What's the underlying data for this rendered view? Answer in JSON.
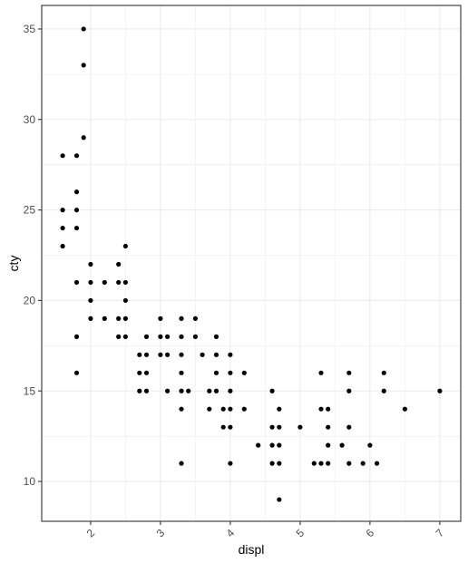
{
  "chart_data": {
    "type": "scatter",
    "title": "",
    "xlabel": "displ",
    "ylabel": "cty",
    "xlim": [
      1.3,
      7.3
    ],
    "ylim": [
      7.8,
      36.3
    ],
    "x_ticks": [
      2,
      3,
      4,
      5,
      6,
      7
    ],
    "x_tick_labels": [
      "2",
      "3",
      "4",
      "5",
      "6",
      "7"
    ],
    "y_ticks": [
      10,
      15,
      20,
      25,
      30,
      35
    ],
    "y_tick_labels": [
      "10",
      "15",
      "20",
      "25",
      "30",
      "35"
    ],
    "grid": true,
    "x_tick_label_rotation": "45 degrees",
    "point_color": "#000000",
    "background": "#ffffff",
    "grid_color": "#ebebeb",
    "border_color": "#333333",
    "points": [
      [
        1.6,
        28
      ],
      [
        1.6,
        25
      ],
      [
        1.6,
        24
      ],
      [
        1.6,
        23
      ],
      [
        1.8,
        28
      ],
      [
        1.8,
        26
      ],
      [
        1.8,
        25
      ],
      [
        1.8,
        24
      ],
      [
        1.8,
        21
      ],
      [
        1.8,
        18
      ],
      [
        1.8,
        16
      ],
      [
        1.9,
        35
      ],
      [
        1.9,
        33
      ],
      [
        1.9,
        29
      ],
      [
        2.0,
        22
      ],
      [
        2.0,
        21
      ],
      [
        2.0,
        20
      ],
      [
        2.0,
        19
      ],
      [
        2.2,
        21
      ],
      [
        2.2,
        19
      ],
      [
        2.4,
        22
      ],
      [
        2.4,
        21
      ],
      [
        2.4,
        19
      ],
      [
        2.4,
        18
      ],
      [
        2.5,
        23
      ],
      [
        2.5,
        21
      ],
      [
        2.5,
        20
      ],
      [
        2.5,
        19
      ],
      [
        2.5,
        18
      ],
      [
        2.7,
        17
      ],
      [
        2.7,
        16
      ],
      [
        2.7,
        15
      ],
      [
        2.8,
        18
      ],
      [
        2.8,
        17
      ],
      [
        2.8,
        16
      ],
      [
        2.8,
        15
      ],
      [
        3.0,
        19
      ],
      [
        3.0,
        18
      ],
      [
        3.0,
        17
      ],
      [
        3.1,
        18
      ],
      [
        3.1,
        17
      ],
      [
        3.1,
        15
      ],
      [
        3.3,
        19
      ],
      [
        3.3,
        18
      ],
      [
        3.3,
        17
      ],
      [
        3.3,
        16
      ],
      [
        3.3,
        15
      ],
      [
        3.3,
        14
      ],
      [
        3.3,
        11
      ],
      [
        3.4,
        15
      ],
      [
        3.5,
        19
      ],
      [
        3.5,
        18
      ],
      [
        3.6,
        17
      ],
      [
        3.7,
        15
      ],
      [
        3.7,
        14
      ],
      [
        3.8,
        18
      ],
      [
        3.8,
        17
      ],
      [
        3.8,
        16
      ],
      [
        3.8,
        15
      ],
      [
        3.9,
        14
      ],
      [
        3.9,
        13
      ],
      [
        4.0,
        17
      ],
      [
        4.0,
        16
      ],
      [
        4.0,
        15
      ],
      [
        4.0,
        14
      ],
      [
        4.0,
        13
      ],
      [
        4.0,
        11
      ],
      [
        4.2,
        16
      ],
      [
        4.2,
        14
      ],
      [
        4.4,
        12
      ],
      [
        4.6,
        15
      ],
      [
        4.6,
        13
      ],
      [
        4.6,
        12
      ],
      [
        4.6,
        11
      ],
      [
        4.7,
        14
      ],
      [
        4.7,
        13
      ],
      [
        4.7,
        12
      ],
      [
        4.7,
        11
      ],
      [
        4.7,
        9
      ],
      [
        5.0,
        13
      ],
      [
        5.2,
        11
      ],
      [
        5.3,
        16
      ],
      [
        5.3,
        14
      ],
      [
        5.3,
        11
      ],
      [
        5.4,
        14
      ],
      [
        5.4,
        13
      ],
      [
        5.4,
        12
      ],
      [
        5.4,
        11
      ],
      [
        5.6,
        12
      ],
      [
        5.7,
        16
      ],
      [
        5.7,
        15
      ],
      [
        5.7,
        13
      ],
      [
        5.7,
        11
      ],
      [
        5.9,
        11
      ],
      [
        6.0,
        12
      ],
      [
        6.1,
        11
      ],
      [
        6.2,
        16
      ],
      [
        6.2,
        15
      ],
      [
        6.5,
        14
      ],
      [
        7.0,
        15
      ]
    ]
  }
}
